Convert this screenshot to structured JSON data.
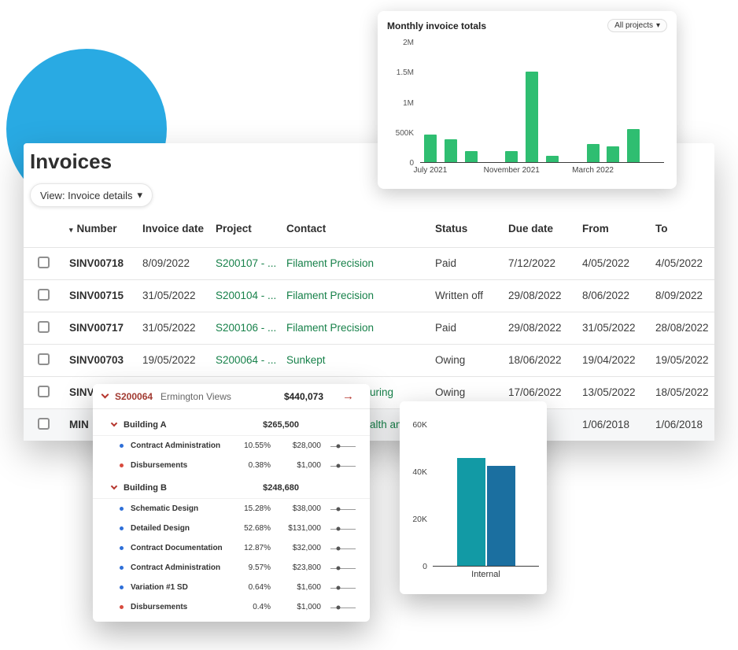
{
  "icons": {
    "caret_down": "▾",
    "sort_desc": "▾",
    "arrow_right": "→"
  },
  "colors": {
    "circle_blue": "#29aae3",
    "bar_green": "#2fbe71",
    "link_green": "#17814a",
    "accent_red": "#b5342c",
    "teal": "#129aa5",
    "steel_blue": "#1b6fa0"
  },
  "monthly_card": {
    "filter_label": "All projects"
  },
  "invoices": {
    "title": "Invoices",
    "view_button_label": "View: Invoice details",
    "table": {
      "columns": [
        "Number",
        "Invoice date",
        "Project",
        "Contact",
        "Status",
        "Due date",
        "From",
        "To"
      ],
      "sort_column": "Number",
      "rows": [
        {
          "number": "SINV00718",
          "invoice_date": "8/09/2022",
          "project": "S200107 - ...",
          "contact": "Filament Precision",
          "status": "Paid",
          "due": "7/12/2022",
          "from": "4/05/2022",
          "to": "4/05/2022"
        },
        {
          "number": "SINV00715",
          "invoice_date": "31/05/2022",
          "project": "S200104 - ...",
          "contact": "Filament Precision",
          "status": "Written off",
          "due": "29/08/2022",
          "from": "8/06/2022",
          "to": "8/09/2022"
        },
        {
          "number": "SINV00717",
          "invoice_date": "31/05/2022",
          "project": "S200106 - ...",
          "contact": "Filament Precision",
          "status": "Paid",
          "due": "29/08/2022",
          "from": "31/05/2022",
          "to": "28/08/2022"
        },
        {
          "number": "SINV00703",
          "invoice_date": "19/05/2022",
          "project": "S200064 - ...",
          "contact": "Sunkept",
          "status": "Owing",
          "due": "18/06/2022",
          "from": "19/04/2022",
          "to": "19/05/2022"
        },
        {
          "number": "SINV",
          "invoice_date": "",
          "project": "",
          "contact": "uring",
          "status": "Owing",
          "due": "17/06/2022",
          "from": "13/05/2022",
          "to": "18/05/2022"
        },
        {
          "number": "MIN",
          "invoice_date": "",
          "project": "",
          "contact": "alth an",
          "status": "",
          "due": "",
          "from": "1/06/2018",
          "to": "1/06/2018"
        }
      ]
    }
  },
  "breakdown": {
    "code": "S200064",
    "name": "Ermington Views",
    "total": "$440,073",
    "sections": [
      {
        "label": "Building A",
        "total": "$265,500",
        "items": [
          {
            "label": "Contract Administration",
            "pct": "10.55%",
            "value": "$28,000",
            "dot": "#2e6fd8"
          },
          {
            "label": "Disbursements",
            "pct": "0.38%",
            "value": "$1,000",
            "dot": "#d84b3e"
          }
        ]
      },
      {
        "label": "Building B",
        "total": "$248,680",
        "items": [
          {
            "label": "Schematic Design",
            "pct": "15.28%",
            "value": "$38,000",
            "dot": "#2e6fd8"
          },
          {
            "label": "Detailed Design",
            "pct": "52.68%",
            "value": "$131,000",
            "dot": "#2e6fd8"
          },
          {
            "label": "Contract Documentation",
            "pct": "12.87%",
            "value": "$32,000",
            "dot": "#2e6fd8"
          },
          {
            "label": "Contract Administration",
            "pct": "9.57%",
            "value": "$23,800",
            "dot": "#2e6fd8"
          },
          {
            "label": "Variation #1 SD",
            "pct": "0.64%",
            "value": "$1,600",
            "dot": "#2e6fd8"
          },
          {
            "label": "Disbursements",
            "pct": "0.4%",
            "value": "$1,000",
            "dot": "#d84b3e"
          }
        ]
      }
    ]
  },
  "chart_data": [
    {
      "name": "monthly_invoice_totals",
      "type": "bar",
      "title": "Monthly invoice totals",
      "x": [
        "Jul 2021",
        "Aug 2021",
        "Sep 2021",
        "Oct 2021",
        "Nov 2021",
        "Dec 2021",
        "Jan 2022",
        "Feb 2022",
        "Mar 2022",
        "Apr 2022",
        "May 2022",
        "Jun 2022"
      ],
      "values": [
        470000,
        390000,
        190000,
        0,
        180000,
        1530000,
        110000,
        0,
        300000,
        260000,
        560000,
        0
      ],
      "ylim": [
        0,
        2000000
      ],
      "ytick_labels": [
        "0",
        "500K",
        "1M",
        "1.5M",
        "2M"
      ],
      "xtick_labels": [
        {
          "label": "July 2021",
          "slot": 0
        },
        {
          "label": "November 2021",
          "slot": 4
        },
        {
          "label": "March 2022",
          "slot": 8
        }
      ],
      "bar_color": "#2fbe71",
      "grid": false,
      "legend": "none"
    },
    {
      "name": "internal_totals",
      "type": "bar",
      "x": [
        "Internal"
      ],
      "series": [
        {
          "color": "#129aa5",
          "values": [
            46000
          ]
        },
        {
          "color": "#1b6fa0",
          "values": [
            42500
          ]
        }
      ],
      "ylim": [
        0,
        60000
      ],
      "ytick_labels": [
        "0",
        "20K",
        "40K",
        "60K"
      ],
      "grid": false,
      "legend": "none"
    }
  ]
}
